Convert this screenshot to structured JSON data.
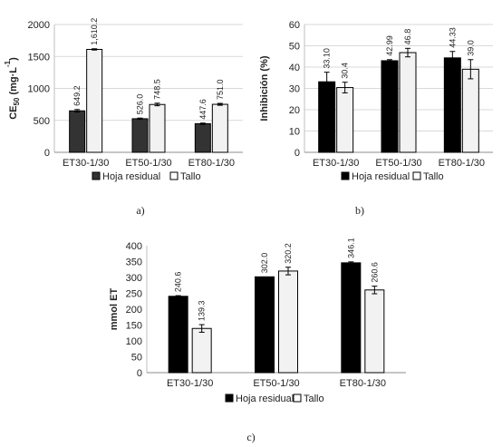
{
  "chart_data": [
    {
      "type": "bar",
      "panel_label": "a)",
      "categories": [
        "ET30-1/30",
        "ET50-1/30",
        "ET80-1/30"
      ],
      "ylabel_base": "CE",
      "ylabel_sub": "50",
      "ylabel_rest": " (mg·L",
      "ylabel_sup": "-1",
      "ylabel_end": ")",
      "ylim": [
        0,
        2000
      ],
      "yticks": [
        "0",
        "500",
        "1000",
        "1500",
        "2000"
      ],
      "ytick_values": [
        0,
        500,
        1000,
        1500,
        2000
      ],
      "grid": true,
      "legend_position": "bottom",
      "series": [
        {
          "name": "Hoja residual",
          "color": "#333333",
          "values": [
            649.2,
            526.0,
            447.6
          ],
          "labels": [
            "649.2",
            "526.0",
            "447.6"
          ],
          "errors": [
            20,
            10,
            10
          ]
        },
        {
          "name": "Tallo",
          "color": "#f2f2f2",
          "values": [
            1610.2,
            748.5,
            751.0
          ],
          "labels": [
            "1,610.2",
            "748.5",
            "751.0"
          ],
          "errors": [
            10,
            20,
            15
          ]
        }
      ]
    },
    {
      "type": "bar",
      "panel_label": "b)",
      "categories": [
        "ET30-1/30",
        "ET50-1/30",
        "ET80-1/30"
      ],
      "ylabel": "Inhibición (%)",
      "ylim": [
        0,
        60
      ],
      "yticks": [
        "0",
        "10",
        "20",
        "30",
        "40",
        "50",
        "60"
      ],
      "ytick_values": [
        0,
        10,
        20,
        30,
        40,
        50,
        60
      ],
      "grid": true,
      "legend_position": "bottom",
      "series": [
        {
          "name": "Hoja residual",
          "color": "#000000",
          "values": [
            33.1,
            42.99,
            44.33
          ],
          "labels": [
            "33.10",
            "42.99",
            "44.33"
          ],
          "errors": [
            4.5,
            0.5,
            3.0
          ]
        },
        {
          "name": "Tallo",
          "color": "#f2f2f2",
          "values": [
            30.4,
            46.8,
            39.0
          ],
          "labels": [
            "30.4",
            "46.8",
            "39.0"
          ],
          "errors": [
            2.5,
            2.0,
            4.5
          ]
        }
      ]
    },
    {
      "type": "bar",
      "panel_label": "c)",
      "categories": [
        "ET30-1/30",
        "ET50-1/30",
        "ET80-1/30"
      ],
      "ylabel": "mmol ET",
      "ylim": [
        0,
        400
      ],
      "yticks": [
        "0",
        "50",
        "100",
        "150",
        "200",
        "250",
        "300",
        "350",
        "400"
      ],
      "ytick_values": [
        0,
        50,
        100,
        150,
        200,
        250,
        300,
        350,
        400
      ],
      "grid": false,
      "legend_position": "bottom",
      "series": [
        {
          "name": "Hoja residual",
          "color": "#000000",
          "values": [
            240.6,
            302.0,
            346.1
          ],
          "labels": [
            "240.6",
            "302.0",
            "346.1"
          ],
          "errors": [
            2,
            0,
            3
          ]
        },
        {
          "name": "Tallo",
          "color": "#f2f2f2",
          "values": [
            139.3,
            320.2,
            260.6
          ],
          "labels": [
            "139.3",
            "320.2",
            "260.6"
          ],
          "errors": [
            12,
            12,
            12
          ]
        }
      ]
    }
  ]
}
